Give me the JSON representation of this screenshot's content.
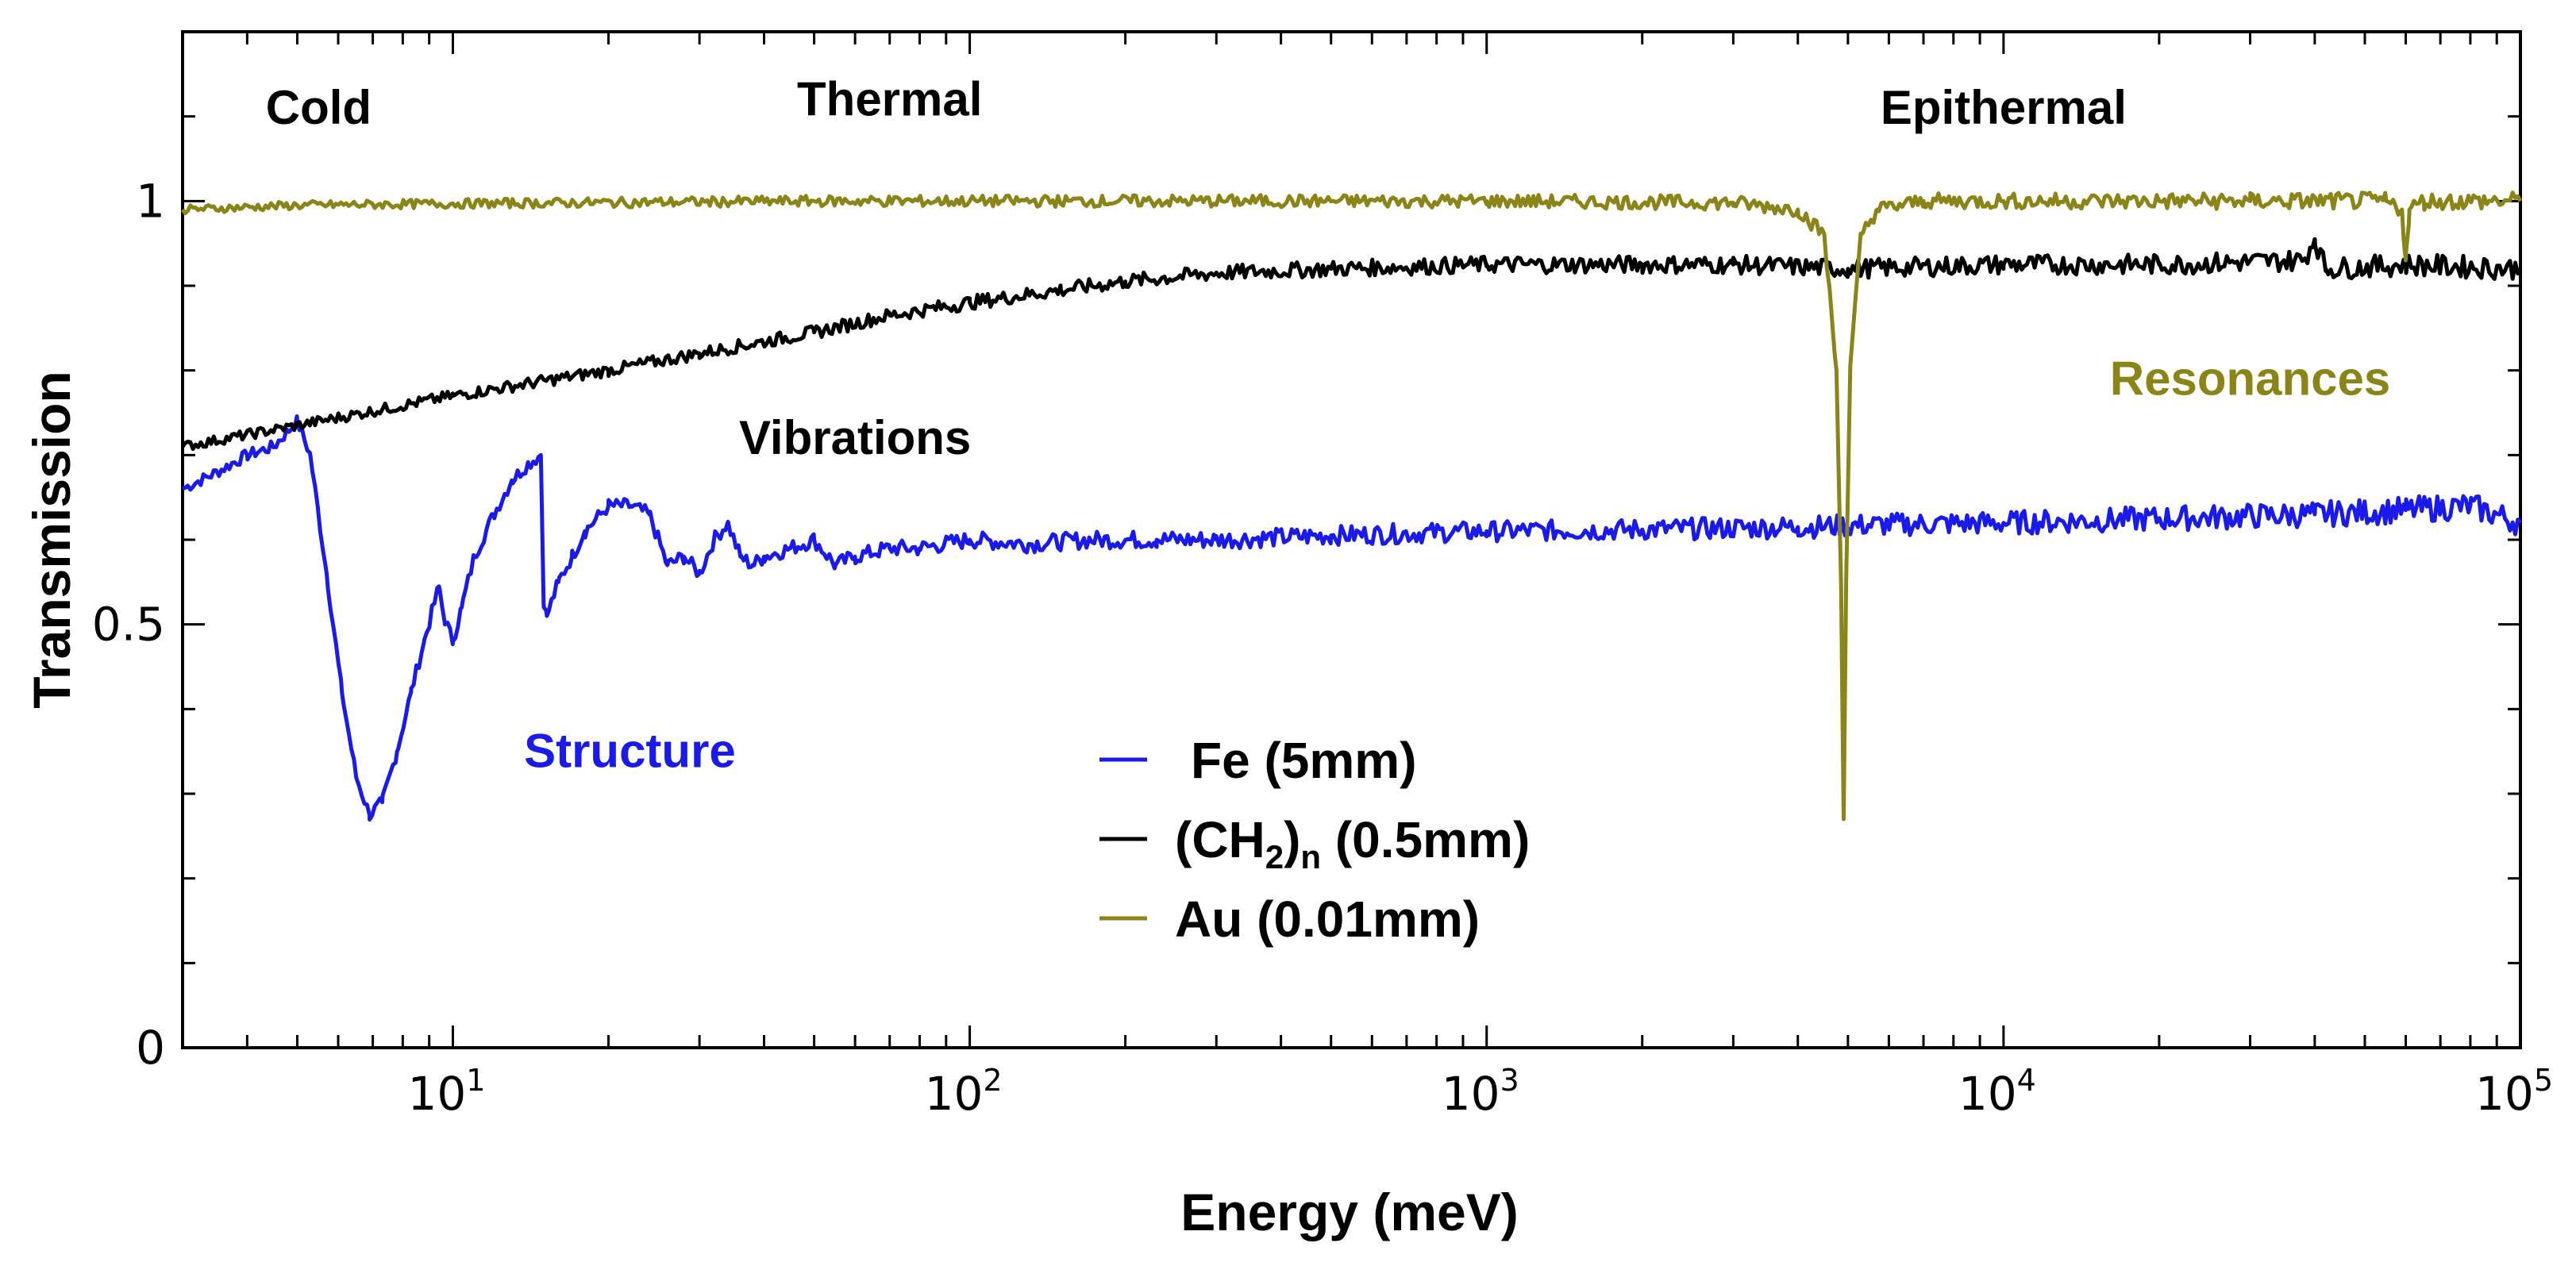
{
  "chart_data": {
    "type": "line",
    "title": "",
    "xlabel": "Energy (meV)",
    "ylabel": "Transmission",
    "xscale": "log",
    "xlim": [
      3,
      100000
    ],
    "ylim": [
      0,
      1.2
    ],
    "x_ticks": [
      {
        "base": "10",
        "exp": "1",
        "value": 10
      },
      {
        "base": "10",
        "exp": "2",
        "value": 100
      },
      {
        "base": "10",
        "exp": "3",
        "value": 1000
      },
      {
        "base": "10",
        "exp": "4",
        "value": 10000
      },
      {
        "base": "10",
        "exp": "5",
        "value": 100000
      }
    ],
    "y_ticks": [
      {
        "label": "0",
        "value": 0
      },
      {
        "label": "0.5",
        "value": 0.5
      },
      {
        "label": "1",
        "value": 1
      }
    ],
    "regions": [
      {
        "label": "Cold",
        "x": 5.5,
        "y": 1.11
      },
      {
        "label": "Thermal",
        "x": 70,
        "y": 1.12
      },
      {
        "label": "Epithermal",
        "x": 10000,
        "y": 1.11
      }
    ],
    "annotations": [
      {
        "label": "Vibrations",
        "x": 60,
        "y": 0.72,
        "color": "#000000"
      },
      {
        "label": "Structure",
        "x": 22,
        "y": 0.35,
        "color": "#1a1aeb"
      },
      {
        "label": "Resonances",
        "x": 30000,
        "y": 0.79,
        "color": "#8a8516"
      }
    ],
    "legend": {
      "position": "center",
      "entries": [
        {
          "name": "Fe (5mm)",
          "main": "Fe (5mm)",
          "sub": "",
          "tail": "",
          "color": "#1a1aeb"
        },
        {
          "name": "(CH2)n (0.5mm)",
          "main": "(CH",
          "sub": "2",
          "tail": ")",
          "sub2": "n",
          "tail2": " (0.5mm)",
          "color": "#000000"
        },
        {
          "name": "Au (0.01mm)",
          "main": "Au (0.01mm)",
          "sub": "",
          "tail": "",
          "color": "#8a8516"
        }
      ]
    },
    "series": [
      {
        "name": "Fe (5mm)",
        "color": "#1a1aeb",
        "x": [
          3,
          3.5,
          4,
          4.5,
          5,
          5.3,
          5.7,
          6.1,
          6.5,
          6.9,
          7.3,
          7.8,
          8.3,
          8.8,
          9.4,
          9.6,
          10.0,
          10.4,
          11,
          12,
          13,
          14,
          14.8,
          15.0,
          15.2,
          16,
          17,
          18,
          20,
          22,
          24,
          26,
          28,
          30,
          32,
          34,
          36,
          38,
          40,
          45,
          50,
          55,
          60,
          70,
          80,
          100,
          130,
          170,
          230,
          300,
          500,
          1000,
          2000,
          4000,
          6000,
          10000,
          20000,
          40000,
          60000,
          80000,
          100000
        ],
        "y": [
          0.66,
          0.68,
          0.7,
          0.71,
          0.74,
          0.7,
          0.56,
          0.42,
          0.32,
          0.275,
          0.29,
          0.35,
          0.42,
          0.48,
          0.545,
          0.51,
          0.48,
          0.52,
          0.58,
          0.63,
          0.67,
          0.69,
          0.7,
          0.52,
          0.51,
          0.55,
          0.58,
          0.61,
          0.64,
          0.64,
          0.63,
          0.57,
          0.58,
          0.56,
          0.6,
          0.62,
          0.58,
          0.57,
          0.58,
          0.59,
          0.6,
          0.57,
          0.58,
          0.59,
          0.59,
          0.6,
          0.595,
          0.6,
          0.6,
          0.6,
          0.605,
          0.61,
          0.612,
          0.615,
          0.618,
          0.62,
          0.625,
          0.63,
          0.635,
          0.64,
          0.62
        ]
      },
      {
        "name": "(CH2)n (0.5mm)",
        "color": "#000000",
        "x": [
          3,
          5,
          10,
          20,
          30,
          50,
          70,
          100,
          150,
          200,
          300,
          500,
          1000,
          2000,
          3000,
          5000,
          10000,
          20000,
          38000,
          40000,
          42000,
          60000,
          100000
        ],
        "y": [
          0.71,
          0.735,
          0.77,
          0.8,
          0.82,
          0.845,
          0.865,
          0.88,
          0.895,
          0.905,
          0.915,
          0.92,
          0.925,
          0.925,
          0.925,
          0.92,
          0.925,
          0.925,
          0.93,
          0.955,
          0.92,
          0.925,
          0.92
        ]
      },
      {
        "name": "Au (0.01mm)",
        "color": "#8a8516",
        "x": [
          3,
          5,
          10,
          50,
          100,
          1000,
          3000,
          4000,
          4500,
          4750,
          4850,
          4906,
          4960,
          5050,
          5300,
          5700,
          7000,
          10000,
          30000,
          55000,
          59000,
          60000,
          61000,
          65000,
          100000
        ],
        "y": [
          0.99,
          0.995,
          0.997,
          1.0,
          1.0,
          1.0,
          0.998,
          0.99,
          0.96,
          0.8,
          0.55,
          0.27,
          0.55,
          0.8,
          0.96,
          0.99,
          1.0,
          1.0,
          1.0,
          1.0,
          0.99,
          0.93,
          0.99,
          1.0,
          1.0
        ]
      }
    ]
  }
}
